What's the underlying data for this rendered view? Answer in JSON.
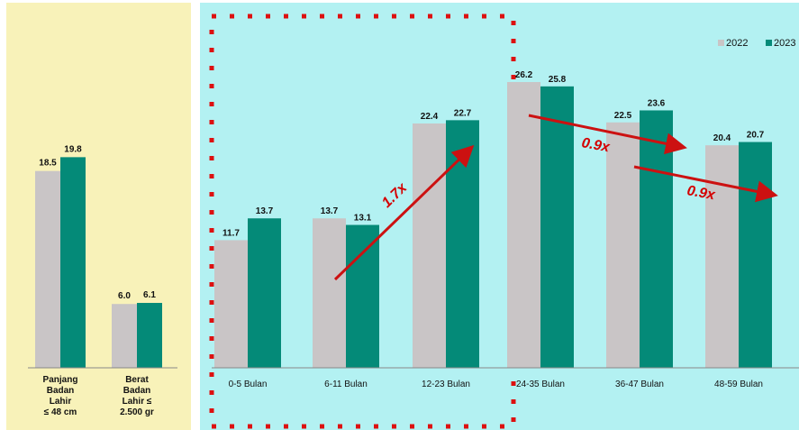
{
  "colors": {
    "series_2022": "#c9c5c6",
    "series_2023": "#048a78",
    "left_bg": "#f8f2b9",
    "right_bg": "#b3f1f2",
    "arrow": "#cc1111",
    "dotted_box": "#dd1010"
  },
  "chart_data": [
    {
      "type": "bar",
      "title": "",
      "categories": [
        "Panjang Badan Lahir ≤ 48 cm",
        "Berat Badan Lahir ≤ 2.500 gr"
      ],
      "category_lines": [
        [
          "Panjang",
          "Badan",
          "Lahir",
          "≤ 48 cm"
        ],
        [
          "Berat",
          "Badan",
          "Lahir ≤",
          "2.500 gr"
        ]
      ],
      "series": [
        {
          "name": "2022",
          "values": [
            18.5,
            6.0
          ]
        },
        {
          "name": "2023",
          "values": [
            19.8,
            6.1
          ]
        }
      ],
      "value_labels": [
        [
          "18.5",
          "6.0"
        ],
        [
          "19.8",
          "6.1"
        ]
      ],
      "ylim": [
        0,
        28
      ],
      "grid": false
    },
    {
      "type": "bar",
      "title": "",
      "categories": [
        "0-5 Bulan",
        "6-11 Bulan",
        "12-23 Bulan",
        "24-35 Bulan",
        "36-47 Bulan",
        "48-59 Bulan"
      ],
      "series": [
        {
          "name": "2022",
          "values": [
            11.7,
            13.7,
            22.4,
            26.2,
            22.5,
            20.4
          ]
        },
        {
          "name": "2023",
          "values": [
            13.7,
            13.1,
            22.7,
            25.8,
            23.6,
            20.7
          ]
        }
      ],
      "value_labels": [
        [
          "11.7",
          "13.7",
          "22.4",
          "26.2",
          "22.5",
          "20.4"
        ],
        [
          "13.7",
          "13.1",
          "22.7",
          "25.8",
          "23.6",
          "20.7"
        ]
      ],
      "ylim": [
        0,
        30
      ],
      "grid": false,
      "legend": {
        "position": "top-right",
        "labels": [
          "2022",
          "2023"
        ]
      },
      "annotations": [
        "1.7x",
        "0.9x",
        "0.9x"
      ]
    }
  ]
}
